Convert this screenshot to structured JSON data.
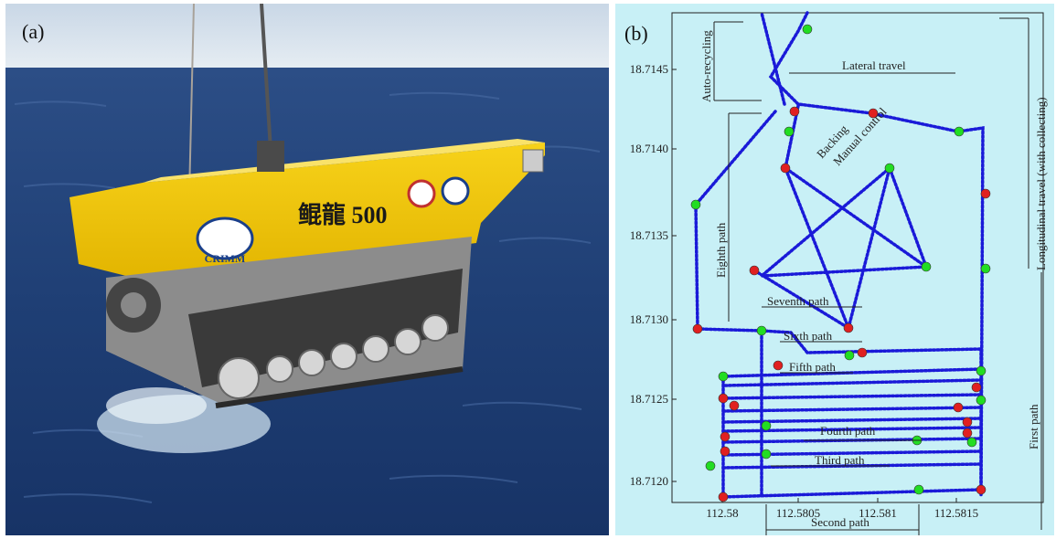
{
  "panel_a": {
    "label": "(a)",
    "vehicle_text": "鲲龍 500",
    "logo_text": "CRIMM"
  },
  "panel_b": {
    "label": "(b)",
    "y_ticks": [
      "18.7145",
      "18.7140",
      "18.7135",
      "18.7130",
      "18.7125",
      "18.7120"
    ],
    "x_ticks": [
      "112.58",
      "112.5805",
      "112.581",
      "112.5815"
    ],
    "annotations": {
      "auto_recycling": "Auto-recycling",
      "lateral_travel": "Lateral travel",
      "backing": "Backing",
      "manual_control": "Manual control",
      "longitudinal_travel": "Longitudinal travel (with collecting)",
      "eighth_path": "Eighth path",
      "seventh_path": "Seventh path",
      "sixth_path": "Sixth path",
      "fifth_path": "Fifth path",
      "fourth_path": "Fourth path",
      "third_path": "Third path",
      "second_path": "Second path",
      "first_path": "First path"
    },
    "colors": {
      "background": "#c8f0f6",
      "track": "#1a1ad8",
      "start_point": "#e02020",
      "end_point": "#22dd22"
    }
  }
}
